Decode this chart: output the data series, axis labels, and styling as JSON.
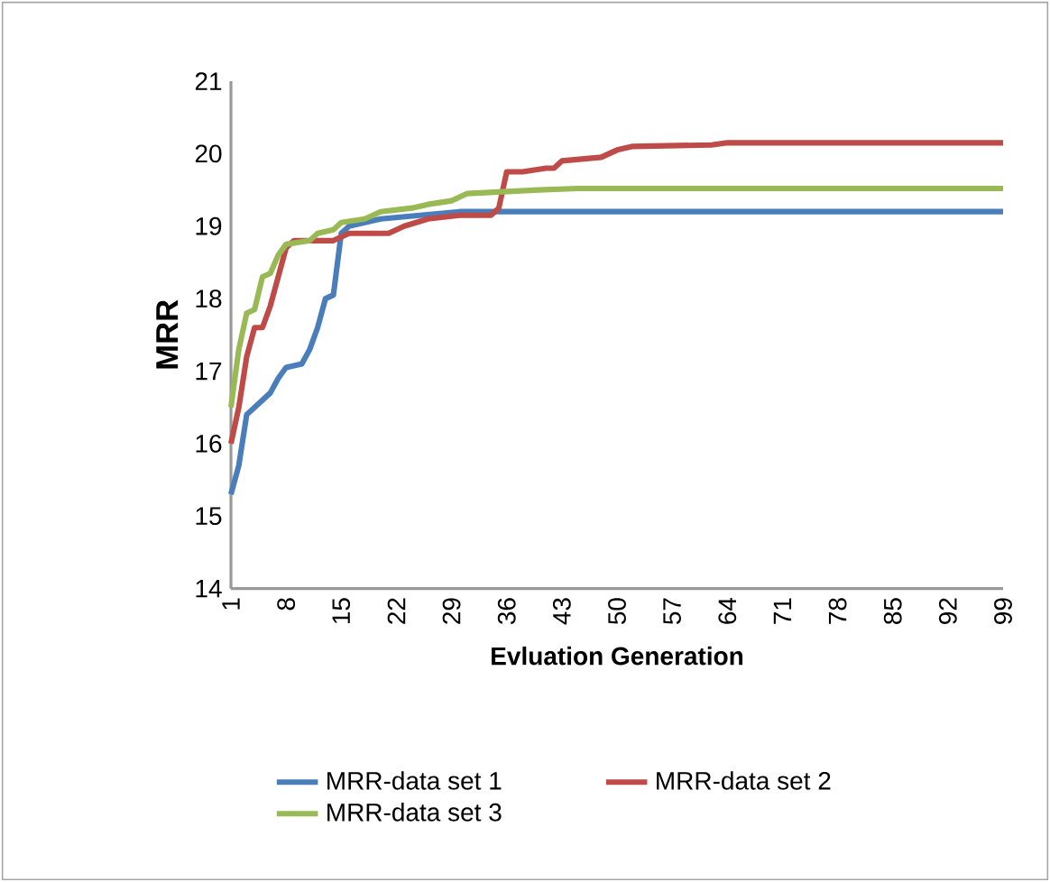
{
  "chart_data": {
    "type": "line",
    "xlabel": "Evluation Generation",
    "ylabel": "MRR",
    "xlim": [
      1,
      99
    ],
    "xticks": [
      1,
      8,
      15,
      22,
      29,
      36,
      43,
      50,
      57,
      64,
      71,
      78,
      85,
      92,
      99
    ],
    "ylim": [
      14,
      21
    ],
    "yticks": [
      14,
      15,
      16,
      17,
      18,
      19,
      20,
      21
    ],
    "legend": "bottom",
    "marker": "none",
    "line_style": "solid",
    "series": [
      {
        "name": "MRR-data set 1",
        "color": "#4a7ebb",
        "x": [
          1,
          2,
          3,
          4,
          6,
          7,
          8,
          10,
          11,
          12,
          13,
          14,
          15,
          16,
          20,
          25,
          30,
          99
        ],
        "values": [
          15.3,
          15.7,
          16.4,
          16.5,
          16.7,
          16.9,
          17.05,
          17.1,
          17.3,
          17.6,
          18.0,
          18.05,
          18.9,
          19.0,
          19.1,
          19.15,
          19.2,
          19.2
        ]
      },
      {
        "name": "MRR-data set 2",
        "color": "#be4b48",
        "x": [
          1,
          2,
          3,
          4,
          5,
          6,
          7,
          8,
          9,
          14,
          16,
          21,
          23,
          26,
          30,
          34,
          35,
          36,
          38,
          41,
          42,
          43,
          48,
          50,
          52,
          62,
          64,
          99
        ],
        "values": [
          16.0,
          16.5,
          17.2,
          17.6,
          17.6,
          17.9,
          18.3,
          18.7,
          18.8,
          18.8,
          18.9,
          18.9,
          19.0,
          19.1,
          19.15,
          19.15,
          19.25,
          19.75,
          19.75,
          19.8,
          19.8,
          19.9,
          19.95,
          20.05,
          20.1,
          20.12,
          20.15,
          20.15
        ]
      },
      {
        "name": "MRR-data set 3",
        "color": "#98b954",
        "x": [
          1,
          2,
          3,
          4,
          5,
          6,
          7,
          8,
          11,
          12,
          14,
          15,
          18,
          20,
          24,
          26,
          29,
          31,
          40,
          45,
          99
        ],
        "values": [
          16.5,
          17.3,
          17.8,
          17.85,
          18.3,
          18.35,
          18.6,
          18.75,
          18.8,
          18.9,
          18.95,
          19.05,
          19.1,
          19.2,
          19.25,
          19.3,
          19.35,
          19.45,
          19.5,
          19.52,
          19.52
        ]
      }
    ]
  }
}
